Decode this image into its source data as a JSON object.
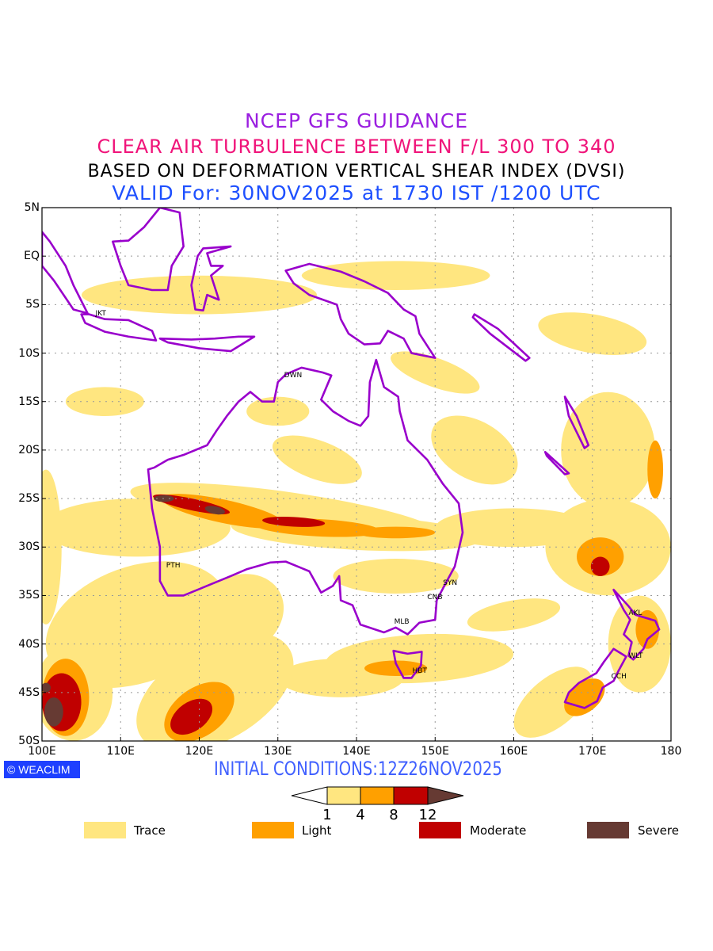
{
  "titles": {
    "line1": "NCEP GFS GUIDANCE",
    "line2": "CLEAR AIR TURBULENCE BETWEEN F/L 300 TO 340",
    "line3": "BASED ON DEFORMATION VERTICAL SHEAR INDEX (DVSI)",
    "line4": "VALID For: 30NOV2025 at 1730 IST /1200 UTC"
  },
  "axes": {
    "lat_labels": [
      "5N",
      "EQ",
      "5S",
      "10S",
      "15S",
      "20S",
      "25S",
      "30S",
      "35S",
      "40S",
      "45S",
      "50S"
    ],
    "lon_labels": [
      "100E",
      "110E",
      "120E",
      "130E",
      "140E",
      "150E",
      "160E",
      "170E",
      "180"
    ]
  },
  "credit": "WEACLIM",
  "initial_conditions": "INITIAL CONDITIONS:12Z26NOV2025",
  "colorbar": {
    "ticks": [
      "1",
      "4",
      "8",
      "12"
    ]
  },
  "legend": [
    {
      "label": "Trace",
      "color": "#ffe680"
    },
    {
      "label": "Light",
      "color": "#ffa000"
    },
    {
      "label": "Moderate",
      "color": "#c00000"
    },
    {
      "label": "Severe",
      "color": "#663a33"
    }
  ],
  "coast_color": "#9900cc",
  "cities": [
    {
      "code": "JKT",
      "lon": 107,
      "lat": -6
    },
    {
      "code": "DWN",
      "lon": 131,
      "lat": -12.4
    },
    {
      "code": "PTH",
      "lon": 116,
      "lat": -32
    },
    {
      "code": "SYN",
      "lon": 151.2,
      "lat": -33.8
    },
    {
      "code": "CNB",
      "lon": 149.2,
      "lat": -35.3
    },
    {
      "code": "MLB",
      "lon": 145,
      "lat": -37.8
    },
    {
      "code": "HBT",
      "lon": 147.3,
      "lat": -42.9
    },
    {
      "code": "AKL",
      "lon": 174.8,
      "lat": -36.9
    },
    {
      "code": "WLT",
      "lon": 174.8,
      "lat": -41.3
    },
    {
      "code": "CCH",
      "lon": 172.6,
      "lat": -43.5
    }
  ]
}
